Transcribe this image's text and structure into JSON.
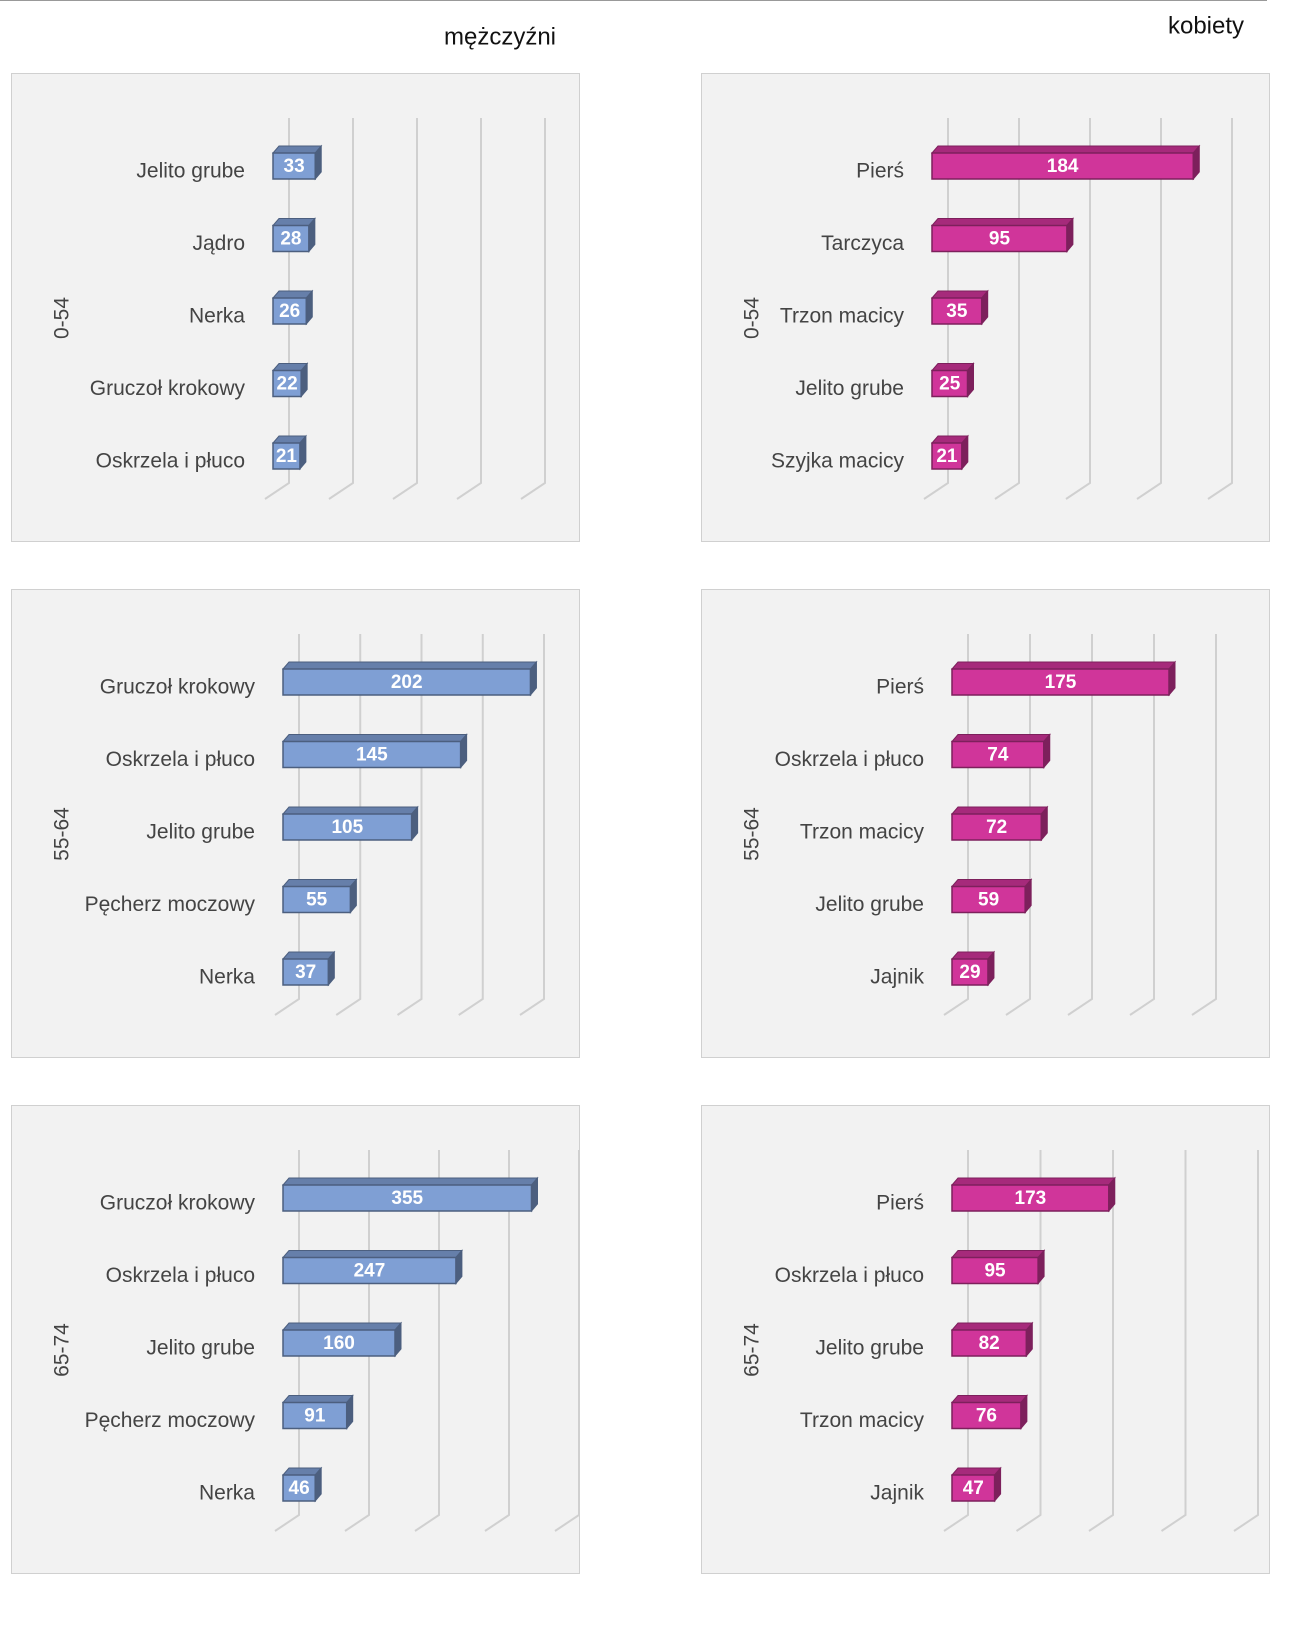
{
  "column_titles": [
    "mężczyźni",
    "kobiety"
  ],
  "chart_data": [
    {
      "type": "bar",
      "orientation": "horizontal",
      "ylabel": "0-54",
      "categories": [
        "Jelito grube",
        "Jądro",
        "Nerka",
        "Gruczoł krokowy",
        "Oskrzela i płuco"
      ],
      "values": [
        33,
        28,
        26,
        22,
        21
      ],
      "color": "#7f9fd4",
      "xlim": [
        0,
        200
      ],
      "xticks": [
        0,
        50,
        100,
        150,
        200
      ],
      "grid": true
    },
    {
      "type": "bar",
      "orientation": "horizontal",
      "ylabel": "0-54",
      "categories": [
        "Pierś",
        "Tarczyca",
        "Trzon macicy",
        "Jelito grube",
        "Szyjka macicy"
      ],
      "values": [
        184,
        95,
        35,
        25,
        21
      ],
      "color": "#d0359a",
      "xlim": [
        0,
        200
      ],
      "xticks": [
        0,
        50,
        100,
        150,
        200
      ],
      "grid": true
    },
    {
      "type": "bar",
      "orientation": "horizontal",
      "ylabel": "55-64",
      "categories": [
        "Gruczoł krokowy",
        "Oskrzela i płuco",
        "Jelito grube",
        "Pęcherz moczowy",
        "Nerka"
      ],
      "values": [
        202,
        145,
        105,
        55,
        37
      ],
      "color": "#7f9fd4",
      "xlim": [
        0,
        200
      ],
      "xticks": [
        0,
        50,
        100,
        150,
        200
      ],
      "grid": true
    },
    {
      "type": "bar",
      "orientation": "horizontal",
      "ylabel": "55-64",
      "categories": [
        "Pierś",
        "Oskrzela i płuco",
        "Trzon macicy",
        "Jelito grube",
        "Jajnik"
      ],
      "values": [
        175,
        74,
        72,
        59,
        29
      ],
      "color": "#d0359a",
      "xlim": [
        0,
        200
      ],
      "xticks": [
        0,
        50,
        100,
        150,
        200
      ],
      "grid": true
    },
    {
      "type": "bar",
      "orientation": "horizontal",
      "ylabel": "65-74",
      "categories": [
        "Gruczoł krokowy",
        "Oskrzela i płuco",
        "Jelito grube",
        "Pęcherz moczowy",
        "Nerka"
      ],
      "values": [
        355,
        247,
        160,
        91,
        46
      ],
      "color": "#7f9fd4",
      "xlim": [
        0,
        400
      ],
      "xticks": [
        0,
        100,
        200,
        300,
        400
      ],
      "grid": true
    },
    {
      "type": "bar",
      "orientation": "horizontal",
      "ylabel": "65-74",
      "categories": [
        "Pierś",
        "Oskrzela i płuco",
        "Jelito grube",
        "Trzon macicy",
        "Jajnik"
      ],
      "values": [
        173,
        95,
        82,
        76,
        47
      ],
      "color": "#d0359a",
      "xlim": [
        0,
        320
      ],
      "xticks": [
        0,
        80,
        160,
        240,
        320
      ],
      "grid": true
    }
  ]
}
